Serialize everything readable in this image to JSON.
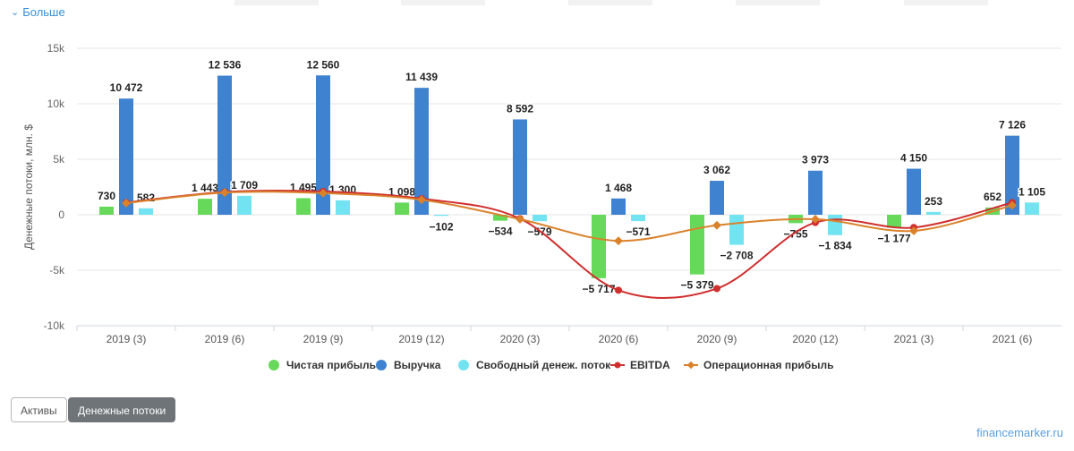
{
  "more_link": {
    "label": "Больше"
  },
  "buttons": {
    "assets": "Активы",
    "cashflow": "Денежные потоки"
  },
  "brand": "financemarker.ru",
  "colors": {
    "net_income": "#66d95b",
    "revenue": "#3e82d0",
    "fcf": "#72e3f0",
    "ebitda": "#d02e2e",
    "op_income": "#d9822b",
    "link": "#3a8fd6"
  },
  "chart_data": {
    "type": "bar",
    "ylabel": "Денежные потоки, млн. $",
    "ylim": [
      -10000,
      15000
    ],
    "yticks": [
      {
        "value": 15000,
        "label": "15k"
      },
      {
        "value": 10000,
        "label": "10k"
      },
      {
        "value": 5000,
        "label": "5k"
      },
      {
        "value": 0,
        "label": "0"
      },
      {
        "value": -5000,
        "label": "-5k"
      },
      {
        "value": -10000,
        "label": "-10k"
      }
    ],
    "grid": true,
    "legend_position": "bottom",
    "categories": [
      "2019 (3)",
      "2019 (6)",
      "2019 (9)",
      "2019 (12)",
      "2020 (3)",
      "2020 (6)",
      "2020 (9)",
      "2020 (12)",
      "2021 (3)",
      "2021 (6)"
    ],
    "series": [
      {
        "name": "Чистая прибыль",
        "kind": "bar",
        "color": "#66d95b",
        "values": [
          730,
          1443,
          1495,
          1098,
          -534,
          -5717,
          -5379,
          -755,
          -1177,
          652
        ],
        "labels": [
          "730",
          "1 443",
          "1 495",
          "1 098",
          "−534",
          "−5 717",
          "−5 379",
          "−755",
          "−1 177",
          "652"
        ]
      },
      {
        "name": "Выручка",
        "kind": "bar",
        "color": "#3e82d0",
        "values": [
          10472,
          12536,
          12560,
          11439,
          8592,
          1468,
          3062,
          3973,
          4150,
          7126
        ],
        "labels": [
          "10 472",
          "12 536",
          "12 560",
          "11 439",
          "8 592",
          "1 468",
          "3 062",
          "3 973",
          "4 150",
          "7 126"
        ]
      },
      {
        "name": "Свободный денеж. поток",
        "kind": "bar",
        "color": "#72e3f0",
        "values": [
          582,
          1709,
          1300,
          -102,
          -579,
          -571,
          -2708,
          -1834,
          253,
          1105
        ],
        "labels": [
          "582",
          "1 709",
          "1 300",
          "−102",
          "−579",
          "−571",
          "−2 708",
          "−1 834",
          "253",
          "1 105"
        ]
      },
      {
        "name": "EBITDA",
        "kind": "line",
        "color": "#d02e2e",
        "values": [
          1100,
          2050,
          2100,
          1450,
          -350,
          -6800,
          -6650,
          -700,
          -1150,
          1100
        ]
      },
      {
        "name": "Операционная прибыль",
        "kind": "line",
        "color": "#d9822b",
        "values": [
          1050,
          2000,
          1950,
          1350,
          -400,
          -2350,
          -950,
          -400,
          -1450,
          850
        ]
      }
    ]
  }
}
